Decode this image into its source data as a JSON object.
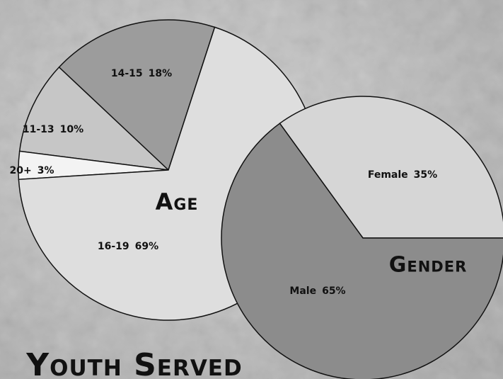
{
  "title": "Youth Served",
  "chart_data": [
    {
      "type": "pie",
      "title": "Age",
      "categories": [
        "14-15",
        "11-13",
        "20+",
        "16-19"
      ],
      "values": [
        18,
        10,
        3,
        69
      ],
      "value_labels": [
        "18%",
        "10%",
        "3%",
        "69%"
      ],
      "colors": [
        "#9c9c9c",
        "#c6c6c6",
        "#f3f3f3",
        "#dedede"
      ]
    },
    {
      "type": "pie",
      "title": "Gender",
      "categories": [
        "Female",
        "Male"
      ],
      "values": [
        35,
        65
      ],
      "value_labels": [
        "35%",
        "65%"
      ],
      "colors": [
        "#d6d6d6",
        "#8c8c8c"
      ]
    }
  ]
}
